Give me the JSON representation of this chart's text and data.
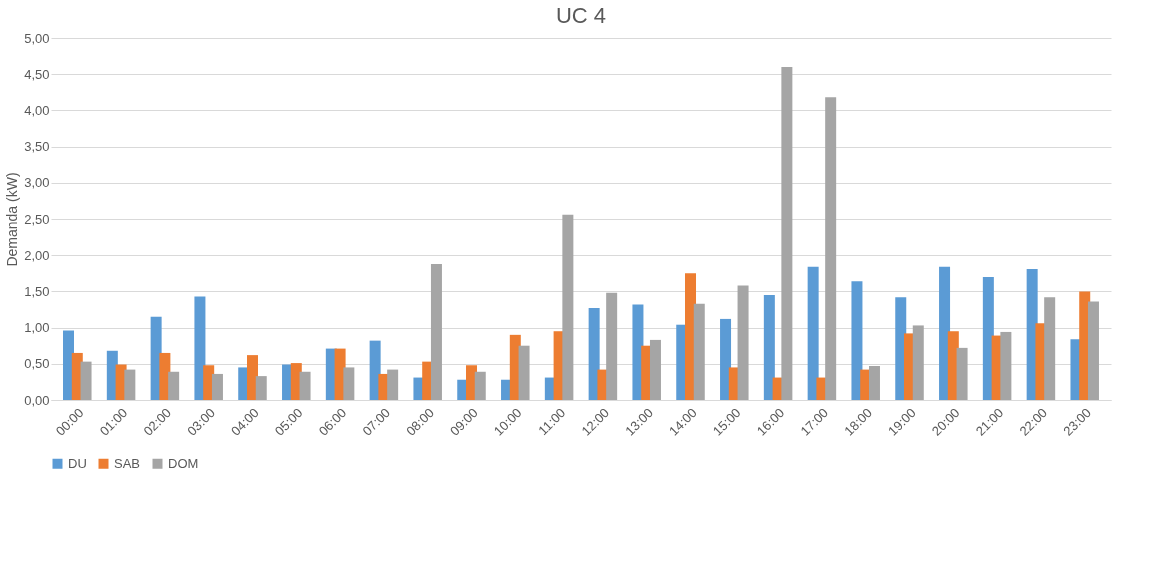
{
  "chart_data": {
    "type": "bar",
    "title": "UC 4",
    "ylabel": "Demanda (kW)",
    "categories": [
      "00:00",
      "01:00",
      "02:00",
      "03:00",
      "04:00",
      "05:00",
      "06:00",
      "07:00",
      "08:00",
      "09:00",
      "10:00",
      "11:00",
      "12:00",
      "13:00",
      "14:00",
      "15:00",
      "16:00",
      "17:00",
      "18:00",
      "19:00",
      "20:00",
      "21:00",
      "22:00",
      "23:00"
    ],
    "series": [
      {
        "name": "DU",
        "color": "#5b9bd5",
        "values": [
          0.96,
          0.68,
          1.15,
          1.43,
          0.45,
          0.49,
          0.71,
          0.82,
          0.31,
          0.28,
          0.28,
          0.31,
          1.27,
          1.32,
          1.04,
          1.12,
          1.45,
          1.84,
          1.64,
          1.42,
          1.84,
          1.7,
          1.81,
          0.84
        ]
      },
      {
        "name": "SAB",
        "color": "#ed7d31",
        "values": [
          0.65,
          0.49,
          0.65,
          0.48,
          0.62,
          0.51,
          0.71,
          0.36,
          0.53,
          0.48,
          0.9,
          0.95,
          0.42,
          0.75,
          1.75,
          0.45,
          0.31,
          0.31,
          0.42,
          0.92,
          0.95,
          0.89,
          1.06,
          1.5
        ]
      },
      {
        "name": "DOM",
        "color": "#a5a5a5",
        "values": [
          0.53,
          0.42,
          0.39,
          0.36,
          0.33,
          0.39,
          0.45,
          0.42,
          1.88,
          0.39,
          0.75,
          2.56,
          1.48,
          0.83,
          1.33,
          1.58,
          4.6,
          4.18,
          0.47,
          1.03,
          0.72,
          0.94,
          1.42,
          1.36
        ]
      }
    ],
    "ylim": [
      0,
      5
    ],
    "yticks": [
      {
        "value": 0,
        "label": "0,00"
      },
      {
        "value": 0.5,
        "label": "0,50"
      },
      {
        "value": 1,
        "label": "1,00"
      },
      {
        "value": 1.5,
        "label": "1,50"
      },
      {
        "value": 2,
        "label": "2,00"
      },
      {
        "value": 2.5,
        "label": "2,50"
      },
      {
        "value": 3,
        "label": "3,00"
      },
      {
        "value": 3.5,
        "label": "3,50"
      },
      {
        "value": 4,
        "label": "4,00"
      },
      {
        "value": 4.5,
        "label": "4,50"
      },
      {
        "value": 5,
        "label": "5,00"
      }
    ],
    "grid": "y",
    "legend": "bottom"
  }
}
